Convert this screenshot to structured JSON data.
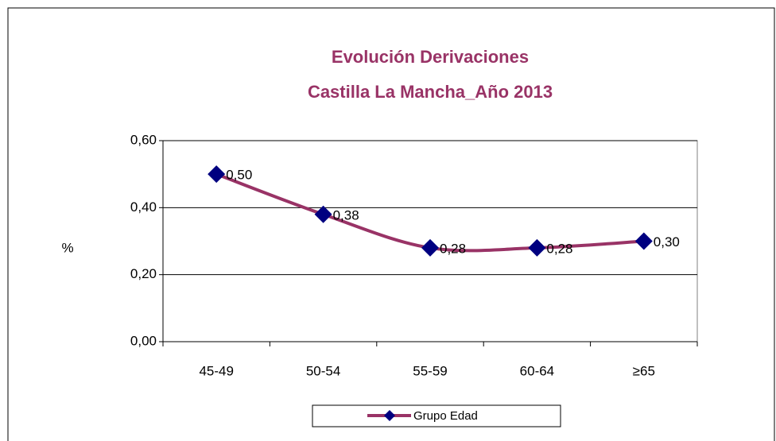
{
  "chart_data": {
    "type": "line",
    "title": [
      "Evolución Derivaciones",
      "Castilla La Mancha_Año 2013"
    ],
    "y_label": "%",
    "categories": [
      "45-49",
      "50-54",
      "55-59",
      "60-64",
      "≥65"
    ],
    "series": [
      {
        "name": "Grupo Edad",
        "color": "#993366",
        "marker_color": "#000080",
        "values": [
          0.5,
          0.38,
          0.28,
          0.28,
          0.3
        ],
        "value_labels": [
          "0,50",
          "0,38",
          "0,28",
          "0,28",
          "0,30"
        ]
      }
    ],
    "ylim": [
      0,
      0.6
    ],
    "yticks": [
      {
        "value": 0,
        "label": "0,00"
      },
      {
        "value": 0.2,
        "label": "0,20"
      },
      {
        "value": 0.4,
        "label": "0,40"
      },
      {
        "value": 0.6,
        "label": "0,60"
      }
    ],
    "grid": true,
    "smooth": true,
    "legend": "bottom"
  }
}
